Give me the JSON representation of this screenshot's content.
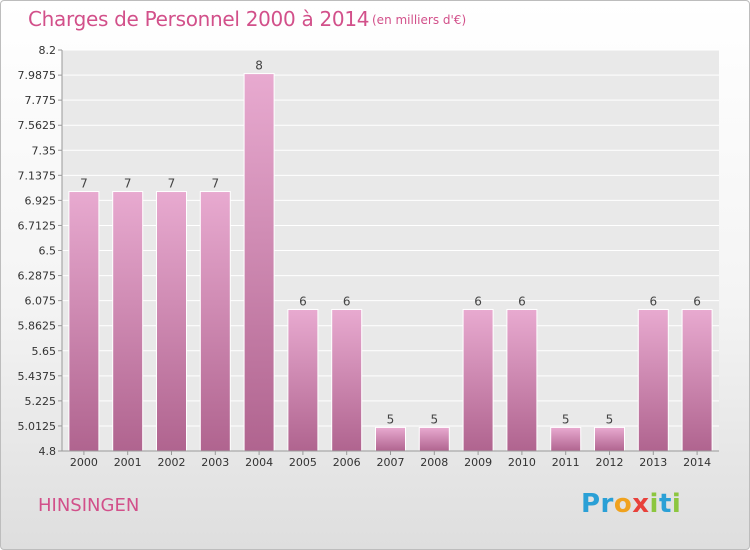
{
  "page": {
    "title": "Charges de Personnel 2000 à 2014",
    "subtitle": "(en milliers d'€)",
    "commune": "HINSINGEN",
    "logo": "Proxiti"
  },
  "colors": {
    "title": "#d2508a",
    "bar_top": "#e8aad0",
    "bar_bottom": "#b0648f"
  },
  "chart_data": {
    "type": "bar",
    "title": "Charges de Personnel 2000 à 2014",
    "subtitle": "(en milliers d'€)",
    "categories": [
      "2000",
      "2001",
      "2002",
      "2003",
      "2004",
      "2005",
      "2006",
      "2007",
      "2008",
      "2009",
      "2010",
      "2011",
      "2012",
      "2013",
      "2014"
    ],
    "values": [
      7.0,
      7.0,
      7.0,
      7.0,
      8.0,
      6.0,
      6.0,
      5.0,
      5.0,
      6.0,
      6.0,
      5.0,
      5.0,
      6.0,
      6.0
    ],
    "data_labels": [
      "7",
      "7",
      "7",
      "7",
      "8",
      "6",
      "6",
      "5",
      "5",
      "6",
      "6",
      "5",
      "5",
      "6",
      "6"
    ],
    "ylim": [
      4.8,
      8.2
    ],
    "yticks": [
      "8.2",
      "7.9875",
      "7.775",
      "7.5625",
      "7.35",
      "7.1375",
      "6.925",
      "6.7125",
      "6.5",
      "6.2875",
      "6.075",
      "5.8625",
      "5.65",
      "5.4375",
      "5.225",
      "5.0125",
      "4.8"
    ],
    "xlabel": "",
    "ylabel": "",
    "grid": true,
    "legend": "none"
  }
}
